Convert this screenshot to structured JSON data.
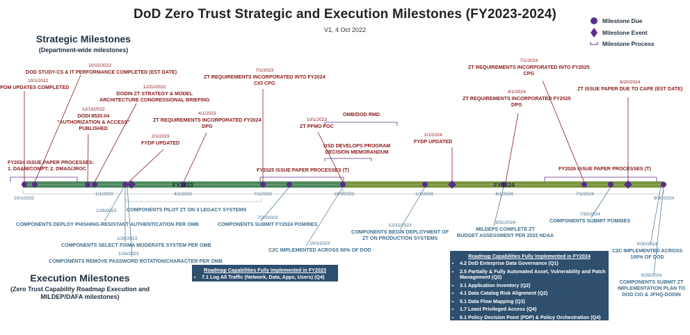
{
  "header": {
    "title": "DoD Zero Trust Strategic and Execution Milestones (FY2023-2024)",
    "version": "V1, 4 Oct 2022"
  },
  "legend": {
    "due": "Milestone Due",
    "event": "Milestone Event",
    "process": "Milestone Process"
  },
  "strategic": {
    "title": "Strategic Milestones",
    "subtitle": "(Department-wide milestones)"
  },
  "execution": {
    "title": "Execution Milestones",
    "subtitle_1": "(Zero Trust Capability Roadmap Execution and",
    "subtitle_2": "MILDEP/DAFA milestones)"
  },
  "timeline": {
    "fy1": "FY2023",
    "fy2": "FY2024",
    "dates": {
      "d1": "10/1/2022",
      "d2": "1/1/2023",
      "d3": "4/1/2023",
      "d4": "7/1/2023",
      "d5": "10/1/2023",
      "d6": "1/1/2024",
      "d7": "4/1/2024",
      "d8": "7/1/2024",
      "d9": "9/30/2024"
    }
  },
  "strategic_milestones": {
    "m1": {
      "date": "10/1/2022",
      "label": "POM UPDATES COMPLETED"
    },
    "m2": {
      "date": "10/15/2022",
      "label": "DOD STUDY-CS & IT PERFORMANCE COMPLETED (EST DATE)"
    },
    "m3": {
      "date": "12/22/2022",
      "l1": "DODIN ZT STRATEGY & MODEL",
      "l2": "ARCHITECTURE CONGRESSIONAL BRIEFING"
    },
    "m4": {
      "date": "12/13/2022",
      "l1": "DODI 8520.04",
      "l2": "\"AUTHORIZATION & ACCESS\"",
      "l3": "PUBLISHED"
    },
    "m5": {
      "date": "2/1/2023",
      "label": "FYDP UPDATED"
    },
    "m6": {
      "date": "4/1/2023",
      "l1": "ZT REQUIREMENTS INCORPORATED FY2024",
      "l2": "DPG"
    },
    "m7": {
      "date": "7/1/2023",
      "l1": "ZT REQUIREMENTS INCORPORATED INTO FY2024",
      "l2": "CIO CPG"
    },
    "m8": {
      "date": "10/1/2023",
      "label": "ZT PFMO FOC"
    },
    "m9": {
      "label": "OMB/DOD RMD"
    },
    "m10": {
      "l1": "OSD DEVELOPS PROGRAM",
      "l2": "DECISION MEMORANDUM"
    },
    "m11": {
      "date": "2/1/2024",
      "label": "FYDP UPDATED"
    },
    "m12": {
      "date": "4/1/2024",
      "l1": "ZT REQUIREMENTS INCORPORATED FY2025",
      "l2": "DPG"
    },
    "m13": {
      "date": "7/1/2024",
      "l1": "ZT REQUIREMENTS INCORPORATED INTO FY2025",
      "l2": "CPG"
    },
    "m14": {
      "date": "8/20/2024",
      "label": "ZT ISSUE PAPER DUE TO CAPE (EST DATE)"
    },
    "p1": {
      "l1": "FY2024 ISSUE PAPER PROCESSES:",
      "l2": "1. DA&M/COMPT; 2. DMAG/JROC"
    },
    "p2": {
      "label": "FY2025 ISSUE PAPER PROCESSES (T)"
    },
    "p3": {
      "label": "FY2026 ISSUE PAPER PROCESSES (T)"
    }
  },
  "execution_milestones": {
    "e1": {
      "date": "1/26/2023",
      "label": "COMPONENTS DEPLOY PHISHING-RESISTANT AUTHENTICATION PER OMB"
    },
    "e2": {
      "date": "1/26/2023",
      "label": "COMPONENTS SELECT FISMA MODERATE SYSTEM PER OMB"
    },
    "e3": {
      "date": "1/26/2023",
      "label": "COMPONENTS REMOVE PASSWORD ROTATION/CHARACTER PER OMB"
    },
    "e4": {
      "label": "COMPONENTS PILOT ZT ON 3 LEGACY SYSTEMS"
    },
    "e5": {
      "date": "7/30/2023",
      "label": "COMPONENTS SUBMIT FY2024 POM/BES"
    },
    "e6": {
      "date": "10/1/2023",
      "label": "C2C IMPLEMENTED ACROSS 50% OF DOD"
    },
    "e7": {
      "date": "12/31/2023",
      "l1": "COMPONENTS BEGIN DEPLOYMENT OF",
      "l2": "ZT ON PRODUCTION SYSTEMS"
    },
    "e8": {
      "date": "3/31/2024",
      "l1": "MILDEPS COMPLETE ZT",
      "l2": "BUDGET ASSESSMENT PER 2022 NDAA"
    },
    "e9": {
      "date": "7/30/2024",
      "label": "COMPONENTS SUBMIT POM/BES"
    },
    "e10": {
      "date": "9/30/2024",
      "l1": "C2C IMPLEMENTED ACROSS",
      "l2": "100% OF DOD"
    },
    "e11": {
      "date": "9/29/2024",
      "l1": "COMPONENTS SUBMIT ZT",
      "l2": "IMPLEMENTATION PLAN TO",
      "l3": "DOD CIO & JFHQ-DODIN"
    }
  },
  "roadmap_2023": {
    "heading": "Roadmap Capabilities Fully Implemented in FY2023",
    "items": [
      "7.1 Log All Traffic (Network, Data, Apps, Users) (Q4)"
    ]
  },
  "roadmap_2024": {
    "heading": "Roadmap Capabilities Fully Implemented in FY2024",
    "items": [
      "4.2 DoD Enterprise Data Governance (Q1)",
      "2.5 Partially & Fully Automated Asset, Vulnerability and Patch Management (Q2)",
      "3.1 Application Inventory (Q2)",
      "4.1 Data Catalog Risk Alignment (Q2)",
      "5.1 Data Flow Mapping (Q3)",
      "1.7 Least Privileged Access (Q4)",
      "6.1 Policy Decision Point (PDP) & Policy Orchestration (Q4)"
    ]
  },
  "colors": {
    "bar_fy23": "#4f8a5f",
    "bar_fy24": "#7a9540",
    "due": "#5a2d8a",
    "strategic_text": "#8b1a1a",
    "exec_text": "#3e6d8e",
    "box": "#2f4f6e"
  }
}
